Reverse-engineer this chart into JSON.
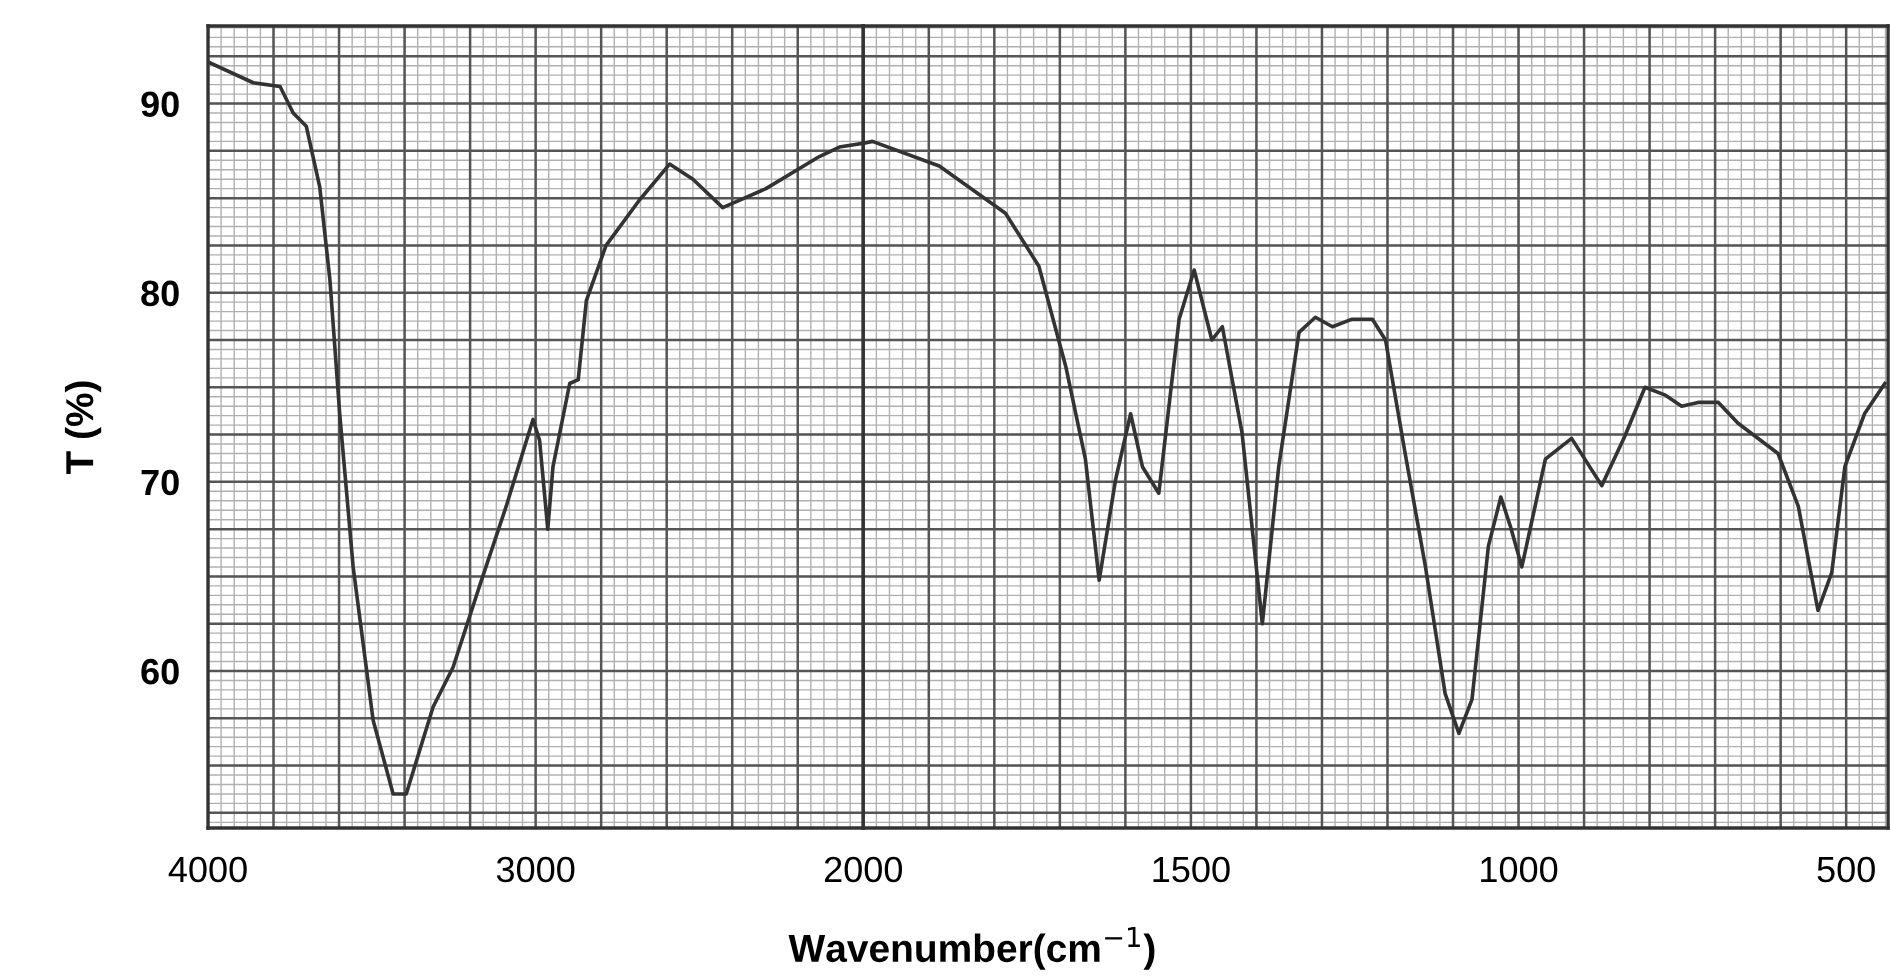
{
  "chart_data": [
    {
      "type": "line",
      "ylabel": "T (%)",
      "xlim": [
        4000,
        2000
      ],
      "ylim": [
        51.7,
        94.1
      ],
      "xticks": [
        4000,
        3000,
        2000
      ],
      "yticks": [
        90,
        80,
        70,
        60
      ],
      "grid": true,
      "series": [
        {
          "color": "#333333",
          "x": [
            4000,
            3862,
            3780,
            3740,
            3700,
            3659,
            3628,
            3598,
            3557,
            3496,
            3435,
            3395,
            3313,
            3252,
            3171,
            3090,
            3008,
            2988,
            2963,
            2947,
            2896,
            2870,
            2845,
            2785,
            2683,
            2591,
            2520,
            2429,
            2297,
            2134,
            2073,
            2000
          ],
          "values": [
            92.2,
            91.1,
            90.9,
            89.5,
            88.8,
            85.6,
            80.7,
            73.6,
            65.5,
            57.4,
            53.5,
            53.5,
            58.1,
            60.2,
            64.5,
            68.7,
            73.3,
            72.2,
            67.5,
            70.8,
            75.2,
            75.4,
            79.6,
            82.5,
            84.9,
            86.8,
            86.0,
            84.5,
            85.5,
            87.2,
            87.7,
            87.9
          ]
        }
      ]
    },
    {
      "type": "line",
      "xlabel": "Wavenumber(cm$^{−1}$)",
      "xlim": [
        2000,
        436
      ],
      "ylim": [
        51.7,
        94.1
      ],
      "xticks": [
        1500,
        1000,
        500
      ],
      "yticks": [
        90,
        80,
        70,
        60
      ],
      "grid": true,
      "tick_labels": "x",
      "series": [
        {
          "color": "#333333",
          "x": [
            2000,
            1986,
            1884,
            1783,
            1732,
            1691,
            1661,
            1640,
            1615,
            1592,
            1574,
            1549,
            1518,
            1495,
            1468,
            1452,
            1422,
            1391,
            1366,
            1335,
            1310,
            1284,
            1254,
            1223,
            1203,
            1173,
            1142,
            1112,
            1091,
            1071,
            1046,
            1027,
            1012,
            995,
            959,
            919,
            873,
            838,
            807,
            777,
            751,
            726,
            695,
            665,
            604,
            573,
            543,
            522,
            502,
            472,
            441
          ],
          "values": [
            87.9,
            88.0,
            86.7,
            84.2,
            81.4,
            76.1,
            71.2,
            64.8,
            70.1,
            73.6,
            70.8,
            69.4,
            78.6,
            81.2,
            77.5,
            78.2,
            72.6,
            62.5,
            70.8,
            77.9,
            78.7,
            78.2,
            78.6,
            78.6,
            77.5,
            71.5,
            65.5,
            58.8,
            56.7,
            58.5,
            66.6,
            69.2,
            67.6,
            65.5,
            71.2,
            72.3,
            69.8,
            72.4,
            75.0,
            74.6,
            74.0,
            74.2,
            74.2,
            73.1,
            71.5,
            68.7,
            63.2,
            65.2,
            70.8,
            73.6,
            75.2
          ]
        }
      ]
    }
  ]
}
